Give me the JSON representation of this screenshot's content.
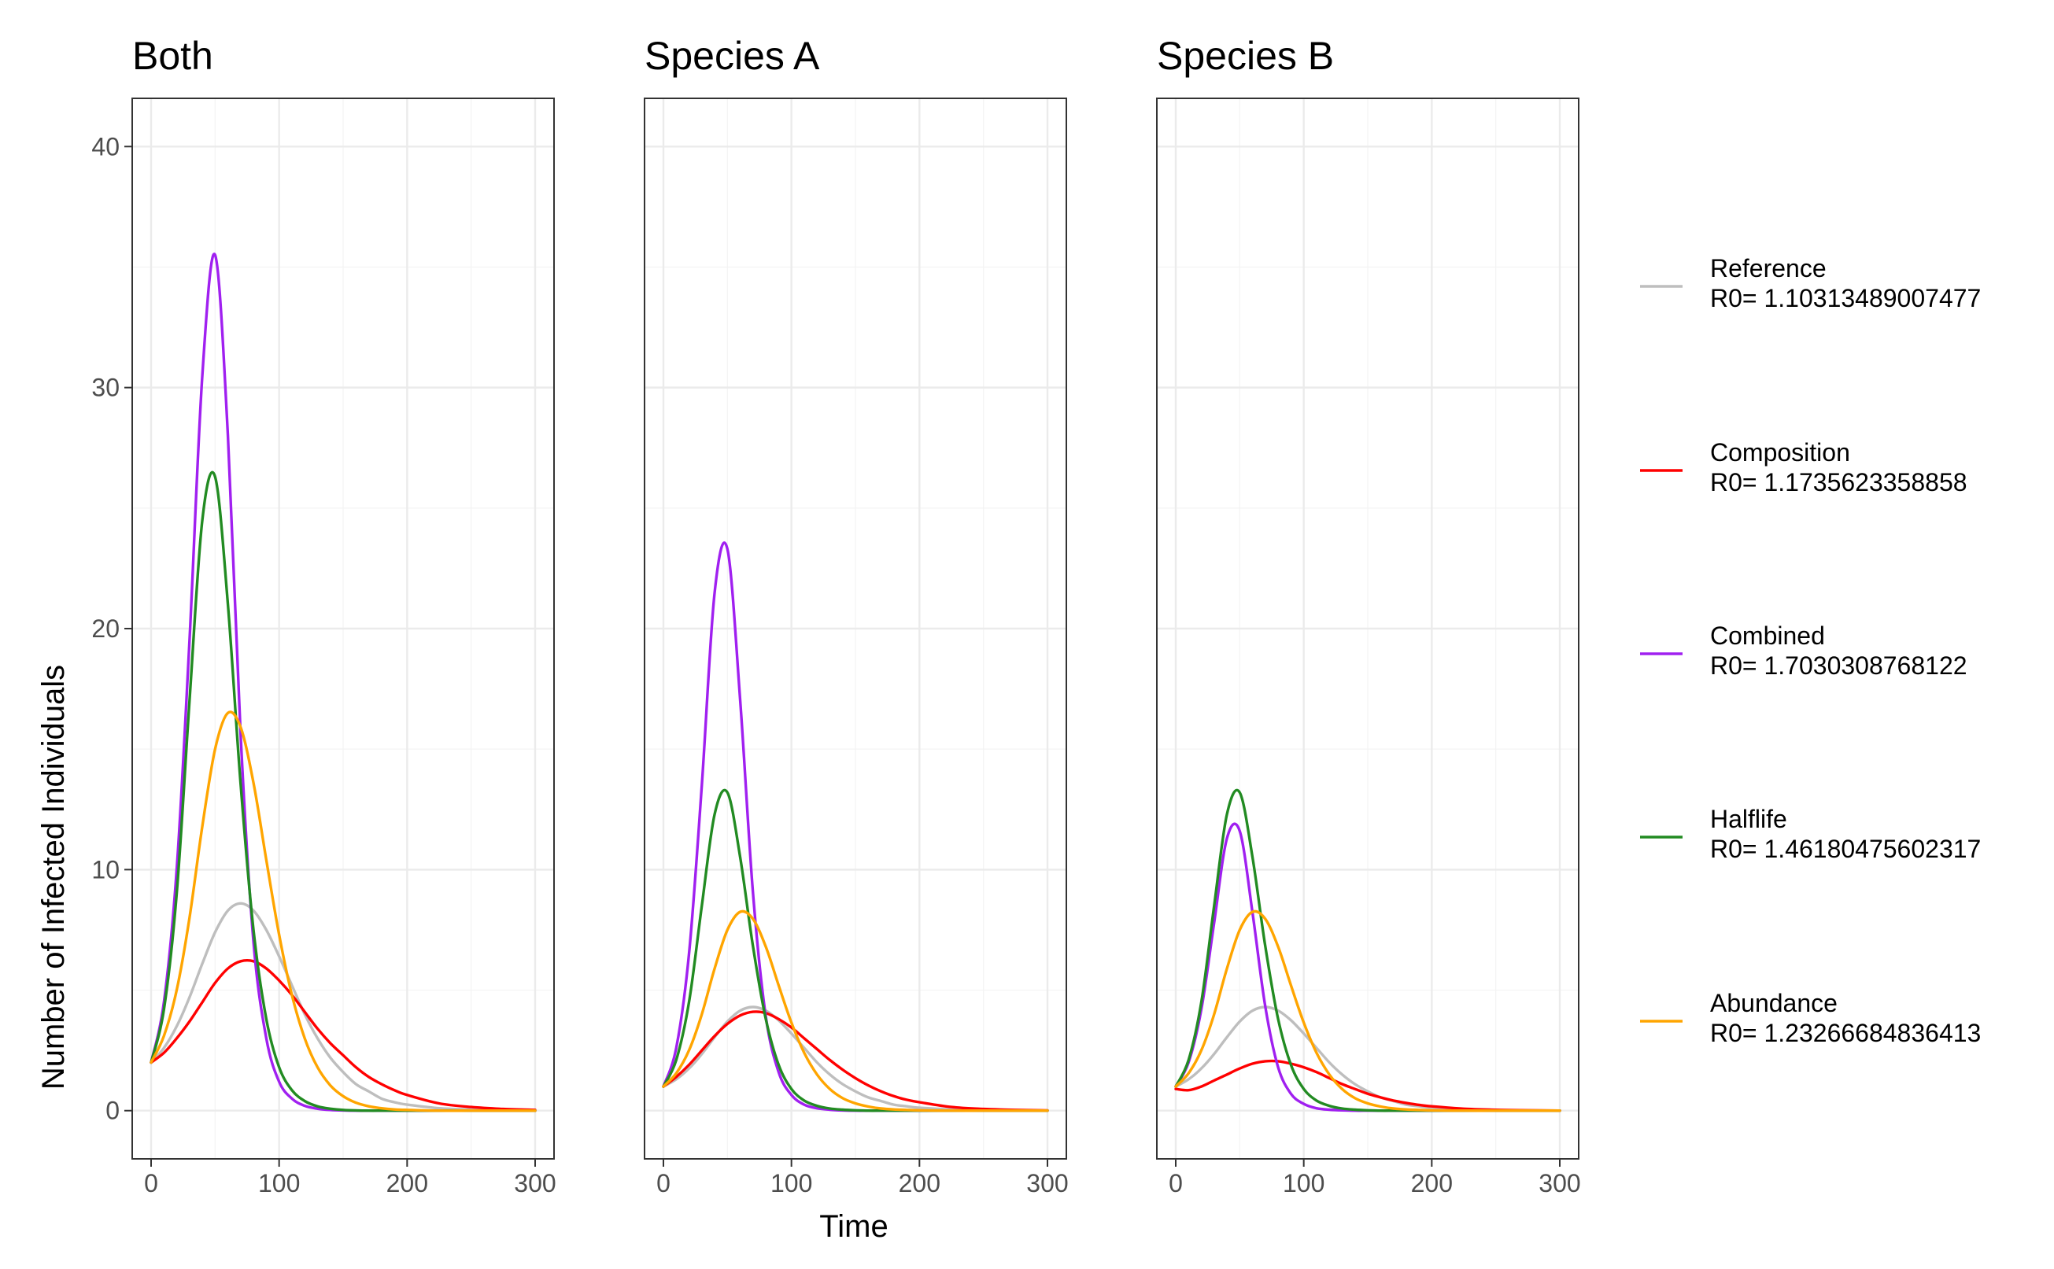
{
  "chart_data": {
    "type": "line",
    "ylabel": "Number of Infected Individuals",
    "xlabel": "Time",
    "xlim": [
      0,
      300
    ],
    "ylim": [
      -2,
      42
    ],
    "x_ticks": [
      0,
      100,
      200,
      300
    ],
    "y_ticks": [
      0,
      10,
      20,
      30,
      40
    ],
    "grid": true,
    "legend_position": "right",
    "series_styles": [
      {
        "key": "Reference",
        "name": "Reference",
        "r0_label": "R0= 1.10313489007477",
        "color": "#bebebe"
      },
      {
        "key": "Composition",
        "name": "Composition",
        "r0_label": "R0= 1.1735623358858",
        "color": "#ff0000"
      },
      {
        "key": "Combined",
        "name": "Combined",
        "r0_label": "R0= 1.7030308768122",
        "color": "#a020f0"
      },
      {
        "key": "Halflife",
        "name": "Halflife",
        "r0_label": "R0= 1.46180475602317",
        "color": "#228b22"
      },
      {
        "key": "Abundance",
        "name": "Abundance",
        "r0_label": "R0= 1.23266684836413",
        "color": "#ffa500"
      }
    ],
    "panels": [
      {
        "title": "Both",
        "x": [
          0,
          10,
          20,
          30,
          40,
          50,
          60,
          70,
          80,
          90,
          100,
          110,
          120,
          130,
          140,
          150,
          160,
          170,
          180,
          190,
          200,
          225,
          250,
          275,
          300
        ],
        "series": [
          {
            "name": "Reference",
            "values": [
              2.0,
              2.6,
              3.5,
              4.7,
              6.1,
              7.4,
              8.3,
              8.6,
              8.3,
              7.5,
              6.4,
              5.2,
              4.0,
              3.0,
              2.2,
              1.6,
              1.1,
              0.8,
              0.5,
              0.35,
              0.25,
              0.1,
              0.05,
              0.02,
              0.01
            ]
          },
          {
            "name": "Composition",
            "values": [
              2.0,
              2.4,
              3.0,
              3.7,
              4.5,
              5.3,
              5.9,
              6.2,
              6.2,
              5.9,
              5.4,
              4.8,
              4.1,
              3.4,
              2.8,
              2.3,
              1.8,
              1.4,
              1.1,
              0.85,
              0.65,
              0.3,
              0.15,
              0.07,
              0.03
            ]
          },
          {
            "name": "Combined",
            "values": [
              2.0,
              4.5,
              10.0,
              19.5,
              30.5,
              35.5,
              28.0,
              15.5,
              7.0,
              3.0,
              1.2,
              0.5,
              0.2,
              0.08,
              0.03,
              0.01,
              0.0,
              0.0,
              0.0,
              0.0,
              0.0,
              0.0,
              0.0,
              0.0,
              0.0
            ]
          },
          {
            "name": "Halflife",
            "values": [
              2.0,
              4.2,
              9.0,
              17.0,
              24.5,
              26.3,
              21.0,
              13.5,
              7.5,
              3.8,
              1.8,
              0.85,
              0.4,
              0.18,
              0.08,
              0.03,
              0.01,
              0.0,
              0.0,
              0.0,
              0.0,
              0.0,
              0.0,
              0.0,
              0.0
            ]
          },
          {
            "name": "Abundance",
            "values": [
              2.0,
              3.1,
              5.0,
              8.0,
              11.8,
              15.0,
              16.5,
              15.9,
              13.6,
              10.4,
              7.3,
              4.8,
              3.0,
              1.8,
              1.05,
              0.6,
              0.33,
              0.18,
              0.1,
              0.05,
              0.03,
              0.0,
              0.0,
              0.0,
              0.0
            ]
          }
        ]
      },
      {
        "title": "Species A",
        "x": [
          0,
          10,
          20,
          30,
          40,
          50,
          60,
          70,
          80,
          90,
          100,
          110,
          120,
          130,
          140,
          150,
          160,
          170,
          180,
          190,
          200,
          225,
          250,
          275,
          300
        ],
        "series": [
          {
            "name": "Reference",
            "values": [
              1.0,
              1.3,
              1.75,
              2.35,
              3.05,
              3.7,
              4.15,
              4.3,
              4.15,
              3.75,
              3.2,
              2.6,
              2.0,
              1.5,
              1.1,
              0.8,
              0.55,
              0.4,
              0.25,
              0.18,
              0.12,
              0.05,
              0.02,
              0.01,
              0.0
            ]
          },
          {
            "name": "Composition",
            "values": [
              1.0,
              1.4,
              1.9,
              2.5,
              3.1,
              3.6,
              3.95,
              4.1,
              4.05,
              3.8,
              3.45,
              3.0,
              2.55,
              2.1,
              1.7,
              1.35,
              1.05,
              0.8,
              0.6,
              0.45,
              0.35,
              0.15,
              0.07,
              0.03,
              0.01
            ]
          },
          {
            "name": "Combined",
            "values": [
              1.0,
              2.6,
              6.5,
              13.5,
              21.5,
              23.3,
              17.0,
              9.0,
              3.9,
              1.6,
              0.65,
              0.25,
              0.1,
              0.04,
              0.01,
              0.0,
              0.0,
              0.0,
              0.0,
              0.0,
              0.0,
              0.0,
              0.0,
              0.0,
              0.0
            ]
          },
          {
            "name": "Halflife",
            "values": [
              1.0,
              2.1,
              4.5,
              8.5,
              12.3,
              13.2,
              10.5,
              6.8,
              3.8,
              1.9,
              0.9,
              0.42,
              0.2,
              0.09,
              0.04,
              0.015,
              0.0,
              0.0,
              0.0,
              0.0,
              0.0,
              0.0,
              0.0,
              0.0,
              0.0
            ]
          },
          {
            "name": "Abundance",
            "values": [
              1.0,
              1.55,
              2.5,
              4.0,
              5.9,
              7.5,
              8.25,
              7.95,
              6.8,
              5.2,
              3.65,
              2.4,
              1.5,
              0.9,
              0.52,
              0.3,
              0.17,
              0.09,
              0.05,
              0.03,
              0.015,
              0.0,
              0.0,
              0.0,
              0.0
            ]
          }
        ]
      },
      {
        "title": "Species B",
        "x": [
          0,
          10,
          20,
          30,
          40,
          50,
          60,
          70,
          80,
          90,
          100,
          110,
          120,
          130,
          140,
          150,
          160,
          170,
          180,
          190,
          200,
          225,
          250,
          275,
          300
        ],
        "series": [
          {
            "name": "Reference",
            "values": [
              1.0,
              1.3,
              1.75,
              2.35,
              3.05,
              3.7,
              4.15,
              4.3,
              4.15,
              3.75,
              3.2,
              2.6,
              2.0,
              1.5,
              1.1,
              0.8,
              0.55,
              0.4,
              0.25,
              0.18,
              0.12,
              0.05,
              0.02,
              0.01,
              0.0
            ]
          },
          {
            "name": "Composition",
            "values": [
              0.9,
              0.85,
              1.0,
              1.25,
              1.5,
              1.75,
              1.95,
              2.05,
              2.05,
              1.95,
              1.8,
              1.6,
              1.35,
              1.1,
              0.9,
              0.7,
              0.55,
              0.42,
              0.32,
              0.24,
              0.18,
              0.08,
              0.035,
              0.015,
              0.0
            ]
          },
          {
            "name": "Combined",
            "values": [
              1.0,
              2.0,
              4.2,
              7.8,
              11.3,
              11.6,
              8.2,
              4.3,
              1.8,
              0.7,
              0.28,
              0.1,
              0.04,
              0.015,
              0.0,
              0.0,
              0.0,
              0.0,
              0.0,
              0.0,
              0.0,
              0.0,
              0.0,
              0.0,
              0.0
            ]
          },
          {
            "name": "Halflife",
            "values": [
              1.0,
              2.1,
              4.5,
              8.5,
              12.3,
              13.2,
              10.5,
              6.8,
              3.8,
              1.9,
              0.9,
              0.42,
              0.2,
              0.09,
              0.04,
              0.015,
              0.0,
              0.0,
              0.0,
              0.0,
              0.0,
              0.0,
              0.0,
              0.0,
              0.0
            ]
          },
          {
            "name": "Abundance",
            "values": [
              1.0,
              1.55,
              2.5,
              4.0,
              5.9,
              7.5,
              8.25,
              7.95,
              6.8,
              5.2,
              3.65,
              2.4,
              1.5,
              0.9,
              0.52,
              0.3,
              0.17,
              0.09,
              0.05,
              0.03,
              0.015,
              0.0,
              0.0,
              0.0,
              0.0
            ]
          }
        ]
      }
    ]
  }
}
